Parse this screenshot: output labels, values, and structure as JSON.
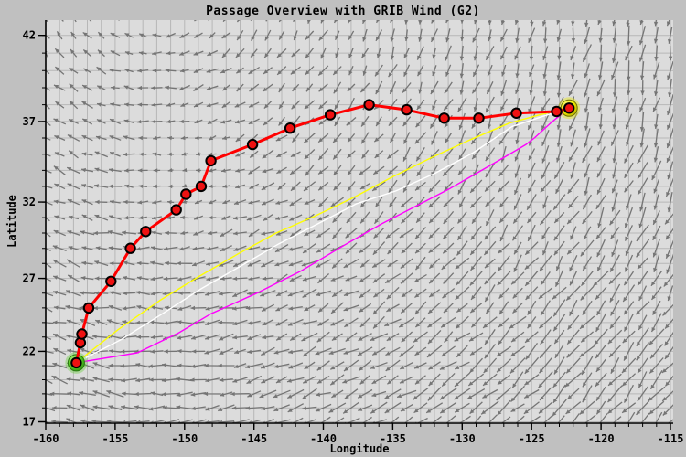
{
  "window": {
    "background": "#c0c0c0",
    "plot_background": "#dcdcdc",
    "grid_color": "#b7b7b7",
    "axis_color": "#000000"
  },
  "chart_data": {
    "type": "line",
    "title": "Passage Overview with GRIB Wind (G2)",
    "xlabel": "Longitude",
    "ylabel": "Latitude",
    "projection": "mercator",
    "xlim": [
      -160,
      -114.8
    ],
    "ylim": [
      16.9,
      42.85
    ],
    "grid": "on, 1-degree spacing",
    "x_major_ticks": [
      -160,
      -155,
      -150,
      -145,
      -140,
      -135,
      -130,
      -125,
      -120,
      -115
    ],
    "y_major_ticks": [
      42,
      37,
      32,
      27,
      22,
      17
    ],
    "minor_tick_step": 1,
    "legend": "none",
    "series": [
      {
        "name": "planned-route",
        "color": "#ff0000",
        "width": 3,
        "marker": {
          "shape": "circle",
          "fill": "#ee1111",
          "stroke": "#000000",
          "radius": 5.2
        },
        "points": [
          [
            -157.8,
            21.2
          ],
          [
            -157.5,
            22.6
          ],
          [
            -157.4,
            23.2
          ],
          [
            -156.9,
            25.0
          ],
          [
            -155.3,
            26.8
          ],
          [
            -153.9,
            29.0
          ],
          [
            -152.8,
            30.1
          ],
          [
            -150.6,
            31.5
          ],
          [
            -149.9,
            32.5
          ],
          [
            -148.8,
            33.0
          ],
          [
            -148.1,
            34.6
          ],
          [
            -145.1,
            35.6
          ],
          [
            -142.4,
            36.6
          ],
          [
            -139.5,
            37.4
          ],
          [
            -136.7,
            38.0
          ],
          [
            -134.0,
            37.7
          ],
          [
            -131.3,
            37.2
          ],
          [
            -128.8,
            37.2
          ],
          [
            -126.1,
            37.5
          ],
          [
            -123.2,
            37.6
          ],
          [
            -122.3,
            37.8
          ]
        ]
      },
      {
        "name": "comparison-track-yellow",
        "color": "#ffff00",
        "width": 1.4,
        "points": [
          [
            -157.8,
            21.2
          ],
          [
            -154.8,
            23.5
          ],
          [
            -151.8,
            25.5
          ],
          [
            -149.0,
            27.1
          ],
          [
            -146.2,
            28.6
          ],
          [
            -143.4,
            30.0
          ],
          [
            -140.6,
            31.1
          ],
          [
            -137.8,
            32.3
          ],
          [
            -135.0,
            33.6
          ],
          [
            -132.2,
            34.8
          ],
          [
            -129.4,
            35.9
          ],
          [
            -126.6,
            36.9
          ],
          [
            -124.4,
            37.4
          ],
          [
            -122.3,
            37.8
          ]
        ]
      },
      {
        "name": "comparison-track-white",
        "color": "#ffffff",
        "width": 1.4,
        "points": [
          [
            -157.8,
            21.2
          ],
          [
            -154.6,
            22.8
          ],
          [
            -151.6,
            24.6
          ],
          [
            -148.8,
            26.3
          ],
          [
            -146.0,
            27.8
          ],
          [
            -143.2,
            29.3
          ],
          [
            -140.4,
            30.6
          ],
          [
            -137.6,
            31.9
          ],
          [
            -134.8,
            32.7
          ],
          [
            -132.0,
            33.8
          ],
          [
            -129.2,
            35.1
          ],
          [
            -126.4,
            36.7
          ],
          [
            -124.2,
            37.3
          ],
          [
            -122.3,
            37.8
          ]
        ]
      },
      {
        "name": "comparison-track-magenta",
        "color": "#ff00ff",
        "width": 1.4,
        "points": [
          [
            -157.8,
            21.2
          ],
          [
            -153.4,
            21.9
          ],
          [
            -150.4,
            23.3
          ],
          [
            -148.1,
            24.6
          ],
          [
            -144.8,
            26.0
          ],
          [
            -141.6,
            27.5
          ],
          [
            -138.5,
            29.2
          ],
          [
            -135.8,
            30.6
          ],
          [
            -133.2,
            31.8
          ],
          [
            -131.0,
            32.8
          ],
          [
            -129.0,
            33.8
          ],
          [
            -127.0,
            34.8
          ],
          [
            -125.4,
            35.6
          ],
          [
            -124.8,
            36.0
          ],
          [
            -123.5,
            37.0
          ],
          [
            -122.3,
            37.8
          ]
        ]
      }
    ],
    "markers": {
      "start": {
        "lon": -157.8,
        "lat": 21.2,
        "style": "green-sphere",
        "color": "#55cc22"
      },
      "destination": {
        "lon": -122.3,
        "lat": 37.8,
        "style": "yellow-sphere",
        "color": "#e8e800"
      }
    },
    "wind_field": {
      "type": "quiver",
      "color": "#757575",
      "grid_deg": 1,
      "lon_range": [
        -160,
        -115
      ],
      "lat_range": [
        17,
        43
      ],
      "pattern": "anticyclonic (clockwise) gyre centered NW of chart: N-NW winds upper-left, westward trades across the south, S to SW winds over the east half",
      "gyre_center": [
        -152,
        48
      ],
      "calm_zone": [
        -150,
        33.5
      ]
    }
  }
}
